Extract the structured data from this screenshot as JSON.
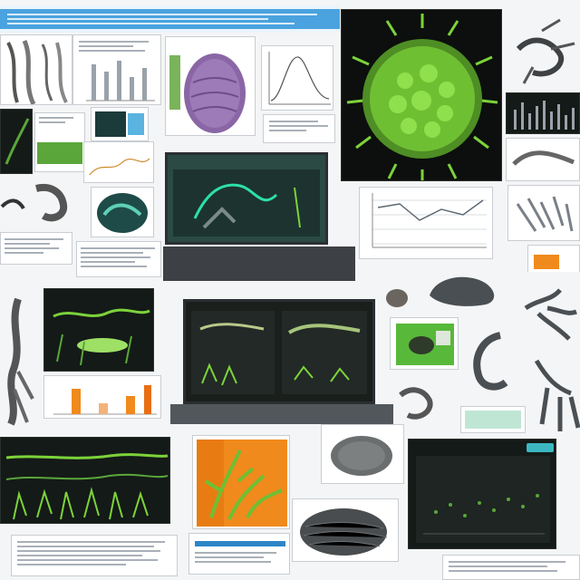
{
  "collage": {
    "theme_colors": {
      "accent_blue": "#2d86c7",
      "specimen_green": "#7cd33a",
      "specimen_purple": "#8a66a6",
      "warm_orange": "#f08a1c",
      "teal": "#3cb6c0"
    },
    "panels": [
      {
        "name": "top-left-document",
        "kind": "document"
      },
      {
        "name": "purple-specimen",
        "kind": "specimen-photo"
      },
      {
        "name": "curve-plot",
        "kind": "line-plot"
      },
      {
        "name": "green-organism-render",
        "kind": "specimen-photo"
      },
      {
        "name": "laptop-top",
        "kind": "device"
      },
      {
        "name": "line-chart-center-right",
        "kind": "line-plot"
      },
      {
        "name": "laptop-center",
        "kind": "device"
      },
      {
        "name": "dark-green-panel-left",
        "kind": "dark-plot"
      },
      {
        "name": "green-bottom-left",
        "kind": "dark-plot"
      },
      {
        "name": "orange-plant-panel",
        "kind": "specimen-photo"
      },
      {
        "name": "grey-texture-specimen",
        "kind": "specimen-photo"
      },
      {
        "name": "dark-dashboard-bottom-right",
        "kind": "dark-plot"
      }
    ]
  }
}
